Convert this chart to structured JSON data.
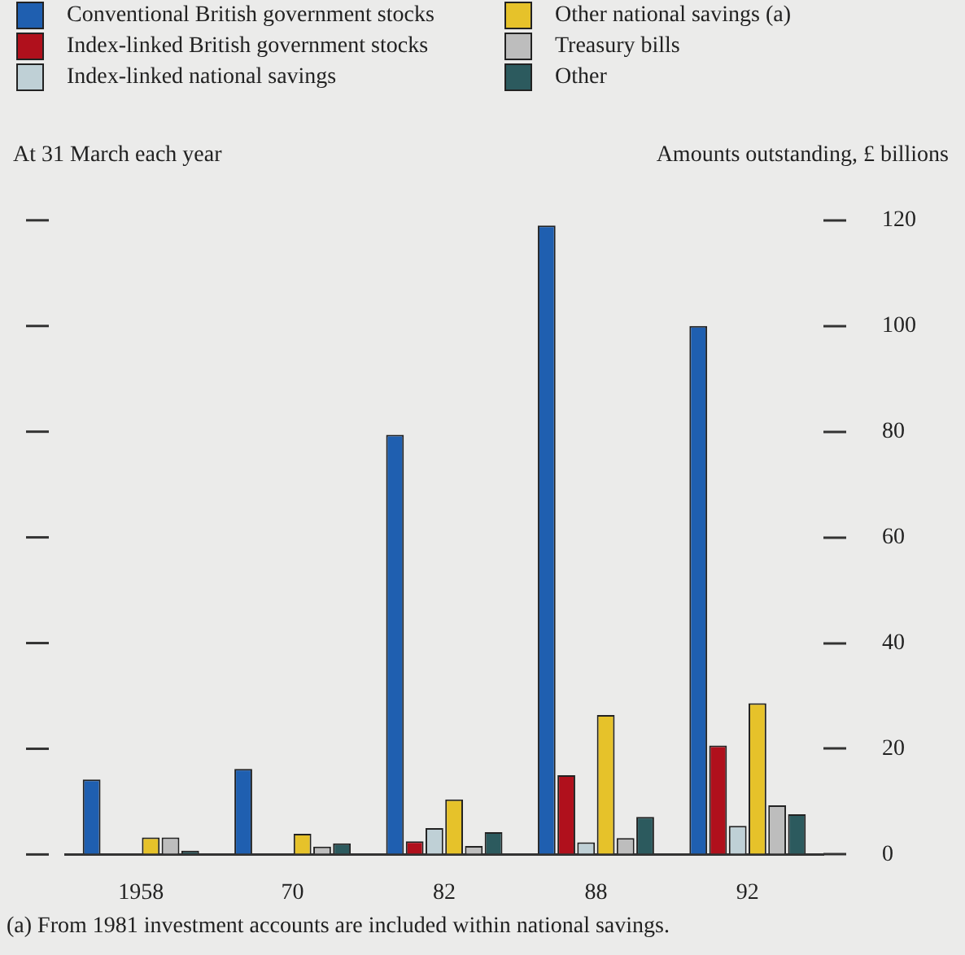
{
  "chart_data": {
    "type": "bar",
    "ylabel": "Amounts outstanding, £ billions",
    "annotations": [
      "At 31 March each year",
      "(a)  From 1981 investment accounts are included within national savings."
    ],
    "categories": [
      "1958",
      "70",
      "82",
      "88",
      "92"
    ],
    "series": [
      {
        "name": "Conventional British government stocks",
        "color": "#1f5fb0",
        "values": [
          14.2,
          16.2,
          79.4,
          119,
          100
        ]
      },
      {
        "name": "Index-linked British government stocks",
        "color": "#b0101c",
        "values": [
          0,
          0,
          2.5,
          15,
          20.6
        ]
      },
      {
        "name": "Index-linked national savings",
        "color": "#bfd0d6",
        "values": [
          0,
          0,
          5,
          2.3,
          5.4
        ]
      },
      {
        "name": "Other national savings (a)",
        "color": "#e6c22a",
        "values": [
          3.2,
          3.9,
          10.4,
          26.4,
          28.6
        ]
      },
      {
        "name": "Treasury bills",
        "color": "#bdbdbd",
        "values": [
          3.2,
          1.5,
          1.6,
          3.1,
          9.3
        ]
      },
      {
        "name": "Other",
        "color": "#2c5a5e",
        "values": [
          0.7,
          2.1,
          4.2,
          7.1,
          7.6
        ]
      }
    ],
    "ylim": [
      0,
      120
    ],
    "yticks": [
      0,
      20,
      40,
      60,
      80,
      100,
      120
    ],
    "grid": false,
    "legend": "top"
  }
}
